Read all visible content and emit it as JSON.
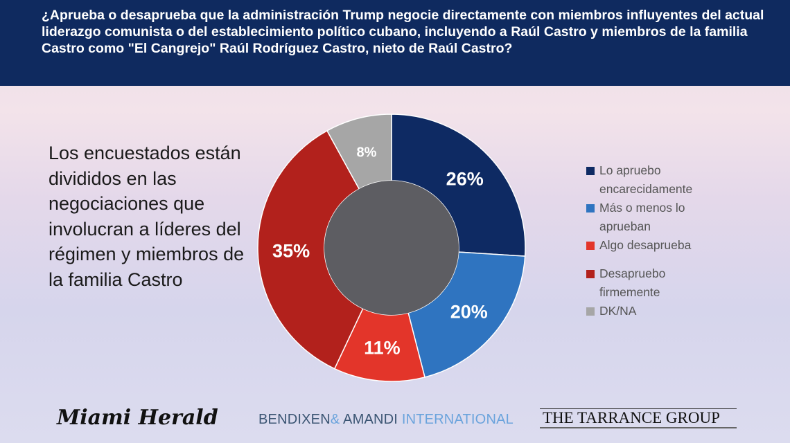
{
  "header": {
    "question": "¿Aprueba o desaprueba que la administración Trump negocie directamente con miembros influyentes del actual liderazgo comunista o del establecimiento político cubano, incluyendo a Raúl Castro y miembros de la familia Castro como \"El Cangrejo\" Raúl Rodríguez Castro, nieto de Raúl Castro?"
  },
  "summary": "Los encuestados están divididos en las negociaciones que involucran a líderes del régimen y miembros de la familia Castro",
  "chart_data": {
    "type": "pie",
    "donut": true,
    "categories": [
      "Lo apruebo encarecidamente",
      "Más o menos lo aprueban",
      "Algo desaprueba",
      "Desapruebo firmemente",
      "DK/NA"
    ],
    "values": [
      26,
      20,
      11,
      35,
      8
    ],
    "labels": [
      "26%",
      "20%",
      "11%",
      "35%",
      "8%"
    ],
    "colors": [
      "#0e2a63",
      "#2f74c0",
      "#e3352a",
      "#b2211c",
      "#a6a6a6"
    ],
    "legend_position": "right"
  },
  "logos": {
    "miami_herald": "Miami Herald",
    "bendixen_a": "BENDIXEN",
    "amp": "&",
    "amandi": " AMANDI ",
    "international": "INTERNATIONAL",
    "tarrance": "THE TARRANCE GROUP"
  }
}
